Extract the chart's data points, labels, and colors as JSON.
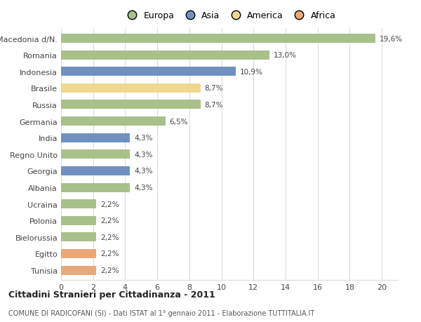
{
  "categories": [
    "Tunisia",
    "Egitto",
    "Bielorussia",
    "Polonia",
    "Ucraina",
    "Albania",
    "Georgia",
    "Regno Unito",
    "India",
    "Germania",
    "Russia",
    "Brasile",
    "Indonesia",
    "Romania",
    "Macedonia d/N."
  ],
  "values": [
    2.2,
    2.2,
    2.2,
    2.2,
    2.2,
    4.3,
    4.3,
    4.3,
    4.3,
    6.5,
    8.7,
    8.7,
    10.9,
    13.0,
    19.6
  ],
  "labels": [
    "2,2%",
    "2,2%",
    "2,2%",
    "2,2%",
    "2,2%",
    "4,3%",
    "4,3%",
    "4,3%",
    "4,3%",
    "6,5%",
    "8,7%",
    "8,7%",
    "10,9%",
    "13,0%",
    "19,6%"
  ],
  "bar_colors": [
    "#e8a878",
    "#e8a878",
    "#a8c08a",
    "#a8c08a",
    "#a8c08a",
    "#a8c08a",
    "#7090bf",
    "#a8c08a",
    "#7090bf",
    "#a8c08a",
    "#a8c08a",
    "#f0d890",
    "#7090bf",
    "#a8c08a",
    "#a8c08a"
  ],
  "xlim": [
    0,
    21
  ],
  "xticks": [
    0,
    2,
    4,
    6,
    8,
    10,
    12,
    14,
    16,
    18,
    20
  ],
  "title": "Cittadini Stranieri per Cittadinanza - 2011",
  "subtitle": "COMUNE DI RADICOFANI (SI) - Dati ISTAT al 1° gennaio 2011 - Elaborazione TUTTITALIA.IT",
  "background_color": "#ffffff",
  "grid_color": "#d8d8d8",
  "bar_height": 0.55,
  "legend_labels": [
    "Europa",
    "Asia",
    "America",
    "Africa"
  ],
  "legend_colors": [
    "#a8c08a",
    "#7090bf",
    "#f0d890",
    "#e8a878"
  ]
}
